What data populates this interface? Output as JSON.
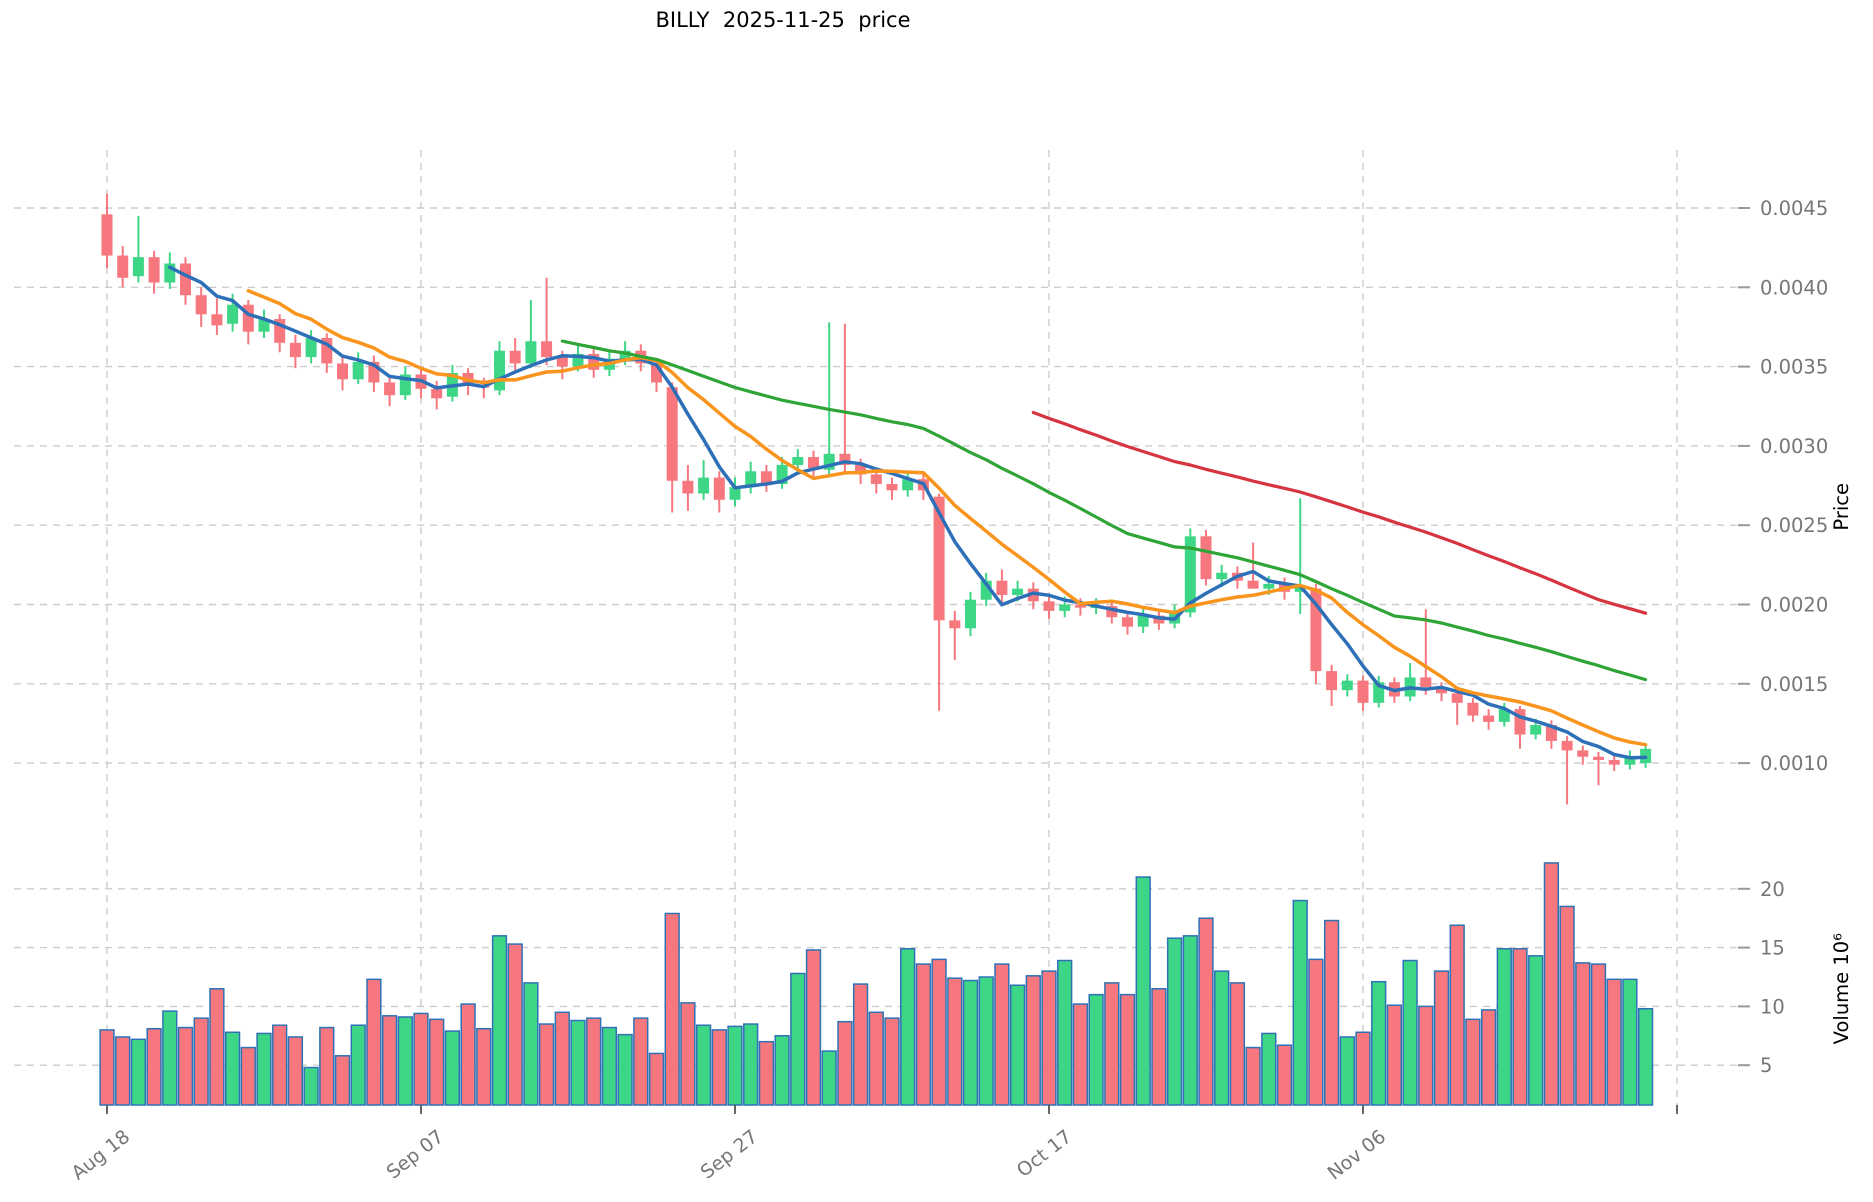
{
  "title": "BILLY  2025-11-25  price",
  "colors": {
    "up": "#3DD687",
    "down": "#F7777E",
    "volume_edge": "#2E72B5",
    "grid": "#CCCCCC",
    "tick_text": "#767676",
    "axis_tick_dash": "#999999",
    "x_tick_mark": "#555555",
    "background": "#FFFFFF"
  },
  "chart_data": {
    "type": "candlestick_volume",
    "title": "BILLY  2025-11-25  price",
    "price_axis": {
      "label": "Price",
      "unit": 0.0001,
      "ticks": [
        "0.0045",
        "0.0040",
        "0.0035",
        "0.0030",
        "0.0025",
        "0.0020",
        "0.0015",
        "0.0010"
      ]
    },
    "volume_axis": {
      "label": "Volume 10⁶",
      "ticks": [
        "20",
        "15",
        "10",
        "5"
      ]
    },
    "x_axis": {
      "ticks": [
        {
          "index": 0,
          "label": "Aug 18"
        },
        {
          "index": 20,
          "label": "Sep 07"
        },
        {
          "index": 40,
          "label": "Sep 27"
        },
        {
          "index": 60,
          "label": "Oct 17"
        },
        {
          "index": 80,
          "label": "Nov 06"
        },
        {
          "index": 100,
          "label": ""
        }
      ]
    },
    "moving_averages": [
      {
        "name": "MA5",
        "window": 5,
        "color": "#2D70B8",
        "width": 3.5
      },
      {
        "name": "MA10",
        "window": 10,
        "color": "#F9941D",
        "width": 3.5
      },
      {
        "name": "MA30",
        "window": 30,
        "color": "#2FA437",
        "width": 3.2
      },
      {
        "name": "MA60",
        "window": 60,
        "color": "#D6343F",
        "width": 3.2
      }
    ],
    "candles": [
      [
        44.6,
        45.9,
        41.2,
        42.0
      ],
      [
        42.0,
        42.6,
        40.0,
        40.6
      ],
      [
        40.7,
        44.5,
        40.3,
        41.9
      ],
      [
        41.9,
        42.3,
        39.6,
        40.3
      ],
      [
        40.3,
        42.2,
        39.9,
        41.5
      ],
      [
        41.5,
        41.9,
        38.9,
        39.5
      ],
      [
        39.5,
        40.0,
        37.5,
        38.3
      ],
      [
        38.3,
        39.3,
        37.0,
        37.6
      ],
      [
        37.7,
        39.6,
        37.2,
        38.9
      ],
      [
        38.9,
        39.2,
        36.4,
        37.2
      ],
      [
        37.2,
        38.6,
        36.8,
        38.0
      ],
      [
        38.0,
        38.3,
        35.9,
        36.5
      ],
      [
        36.5,
        37.0,
        34.9,
        35.6
      ],
      [
        35.6,
        37.3,
        35.2,
        36.8
      ],
      [
        36.8,
        37.1,
        34.6,
        35.2
      ],
      [
        35.2,
        35.6,
        33.5,
        34.2
      ],
      [
        34.2,
        35.9,
        33.9,
        35.3
      ],
      [
        35.3,
        35.7,
        33.4,
        34.0
      ],
      [
        34.0,
        34.4,
        32.5,
        33.2
      ],
      [
        33.2,
        35.0,
        32.9,
        34.5
      ],
      [
        34.5,
        34.9,
        33.0,
        33.6
      ],
      [
        33.6,
        34.1,
        32.3,
        33.0
      ],
      [
        33.1,
        35.1,
        32.8,
        34.6
      ],
      [
        34.6,
        34.9,
        33.2,
        33.8
      ],
      [
        33.8,
        34.3,
        33.0,
        33.7
      ],
      [
        33.5,
        36.6,
        33.2,
        36.0
      ],
      [
        36.0,
        36.8,
        34.6,
        35.2
      ],
      [
        35.2,
        39.2,
        34.9,
        36.6
      ],
      [
        36.6,
        40.6,
        35.1,
        35.6
      ],
      [
        35.6,
        36.0,
        34.2,
        35.0
      ],
      [
        35.0,
        36.3,
        34.7,
        35.8
      ],
      [
        35.8,
        36.1,
        34.3,
        34.8
      ],
      [
        34.8,
        36.0,
        34.4,
        35.5
      ],
      [
        35.5,
        36.6,
        35.1,
        36.0
      ],
      [
        36.0,
        36.4,
        34.7,
        35.2
      ],
      [
        35.2,
        35.5,
        33.4,
        34.0
      ],
      [
        33.7,
        34.0,
        25.8,
        27.8
      ],
      [
        27.8,
        28.8,
        25.9,
        27.0
      ],
      [
        27.0,
        29.1,
        26.6,
        28.0
      ],
      [
        28.0,
        28.4,
        25.8,
        26.6
      ],
      [
        26.6,
        28.0,
        26.2,
        27.4
      ],
      [
        27.4,
        29.0,
        27.0,
        28.4
      ],
      [
        28.4,
        28.8,
        27.1,
        27.6
      ],
      [
        27.6,
        29.3,
        27.3,
        28.8
      ],
      [
        28.8,
        29.8,
        28.4,
        29.3
      ],
      [
        29.3,
        29.7,
        28.0,
        28.6
      ],
      [
        28.5,
        37.8,
        28.0,
        29.5
      ],
      [
        29.5,
        37.7,
        28.2,
        28.8
      ],
      [
        28.8,
        29.2,
        27.6,
        28.2
      ],
      [
        28.2,
        28.6,
        27.0,
        27.6
      ],
      [
        27.6,
        28.0,
        26.6,
        27.2
      ],
      [
        27.2,
        28.4,
        26.8,
        27.9
      ],
      [
        27.9,
        28.3,
        26.6,
        27.2
      ],
      [
        26.8,
        27.0,
        13.3,
        19.0
      ],
      [
        19.0,
        19.6,
        16.5,
        18.5
      ],
      [
        18.5,
        20.8,
        18.0,
        20.3
      ],
      [
        20.3,
        22.0,
        19.9,
        21.5
      ],
      [
        21.5,
        22.2,
        20.1,
        20.6
      ],
      [
        20.6,
        21.5,
        20.2,
        21.0
      ],
      [
        21.0,
        21.4,
        19.7,
        20.2
      ],
      [
        20.2,
        20.6,
        19.1,
        19.6
      ],
      [
        19.6,
        20.5,
        19.2,
        20.0
      ],
      [
        20.0,
        20.4,
        19.3,
        19.8
      ],
      [
        19.8,
        20.4,
        19.4,
        19.9
      ],
      [
        19.9,
        20.3,
        18.8,
        19.2
      ],
      [
        19.2,
        19.6,
        18.1,
        18.6
      ],
      [
        18.6,
        19.8,
        18.2,
        19.3
      ],
      [
        19.3,
        19.7,
        18.4,
        18.8
      ],
      [
        18.8,
        20.0,
        18.5,
        19.5
      ],
      [
        19.5,
        24.8,
        19.2,
        24.3
      ],
      [
        24.3,
        24.7,
        21.2,
        21.6
      ],
      [
        21.6,
        22.5,
        21.1,
        22.0
      ],
      [
        22.0,
        22.4,
        21.0,
        21.5
      ],
      [
        21.5,
        23.9,
        21.0,
        21.0
      ],
      [
        21.0,
        21.8,
        20.6,
        21.3
      ],
      [
        21.3,
        21.7,
        20.3,
        20.8
      ],
      [
        20.8,
        26.7,
        19.4,
        21.2
      ],
      [
        21.0,
        21.3,
        15.0,
        15.8
      ],
      [
        15.8,
        16.2,
        13.6,
        14.6
      ],
      [
        14.6,
        15.6,
        14.2,
        15.2
      ],
      [
        15.2,
        15.5,
        13.3,
        13.8
      ],
      [
        13.8,
        15.5,
        13.5,
        15.1
      ],
      [
        15.1,
        15.4,
        13.8,
        14.2
      ],
      [
        14.2,
        16.3,
        13.9,
        15.4
      ],
      [
        15.4,
        19.7,
        14.3,
        14.8
      ],
      [
        14.8,
        15.1,
        13.9,
        14.4
      ],
      [
        14.4,
        14.7,
        12.4,
        13.8
      ],
      [
        13.8,
        14.1,
        12.6,
        13.0
      ],
      [
        13.0,
        13.4,
        12.1,
        12.6
      ],
      [
        12.6,
        13.8,
        12.3,
        13.4
      ],
      [
        13.4,
        13.6,
        10.9,
        11.8
      ],
      [
        11.8,
        12.8,
        11.5,
        12.4
      ],
      [
        12.4,
        12.7,
        10.9,
        11.4
      ],
      [
        11.4,
        11.7,
        7.4,
        10.8
      ],
      [
        10.8,
        11.1,
        9.9,
        10.4
      ],
      [
        10.4,
        10.7,
        8.6,
        10.2
      ],
      [
        10.2,
        10.5,
        9.5,
        9.9
      ],
      [
        9.9,
        10.8,
        9.6,
        10.4
      ],
      [
        10.0,
        11.2,
        9.7,
        10.9
      ]
    ],
    "volumes_millions": [
      8.0,
      7.4,
      7.2,
      8.1,
      9.6,
      8.2,
      9.0,
      11.5,
      7.8,
      6.5,
      7.7,
      8.4,
      7.4,
      4.8,
      8.2,
      5.8,
      8.4,
      12.3,
      9.2,
      9.1,
      9.4,
      8.9,
      7.9,
      10.2,
      8.1,
      16.0,
      15.3,
      12.0,
      8.5,
      9.5,
      8.8,
      9.0,
      8.2,
      7.6,
      9.0,
      6.0,
      17.9,
      10.3,
      8.4,
      8.0,
      8.3,
      8.5,
      7.0,
      7.5,
      12.8,
      14.8,
      6.2,
      8.7,
      11.9,
      9.5,
      9.0,
      14.9,
      13.6,
      14.0,
      12.4,
      12.2,
      12.5,
      13.6,
      11.8,
      12.6,
      13.0,
      13.9,
      10.2,
      11.0,
      12.0,
      11.0,
      21.0,
      11.5,
      15.8,
      16.0,
      17.5,
      13.0,
      12.0,
      6.5,
      7.7,
      6.7,
      19.0,
      14.0,
      17.3,
      7.4,
      7.8,
      12.1,
      10.1,
      13.9,
      10.0,
      13.0,
      16.9,
      8.9,
      9.7,
      14.9,
      14.9,
      14.3,
      22.2,
      18.5,
      13.7,
      13.6,
      12.3,
      12.3,
      9.8
    ]
  }
}
